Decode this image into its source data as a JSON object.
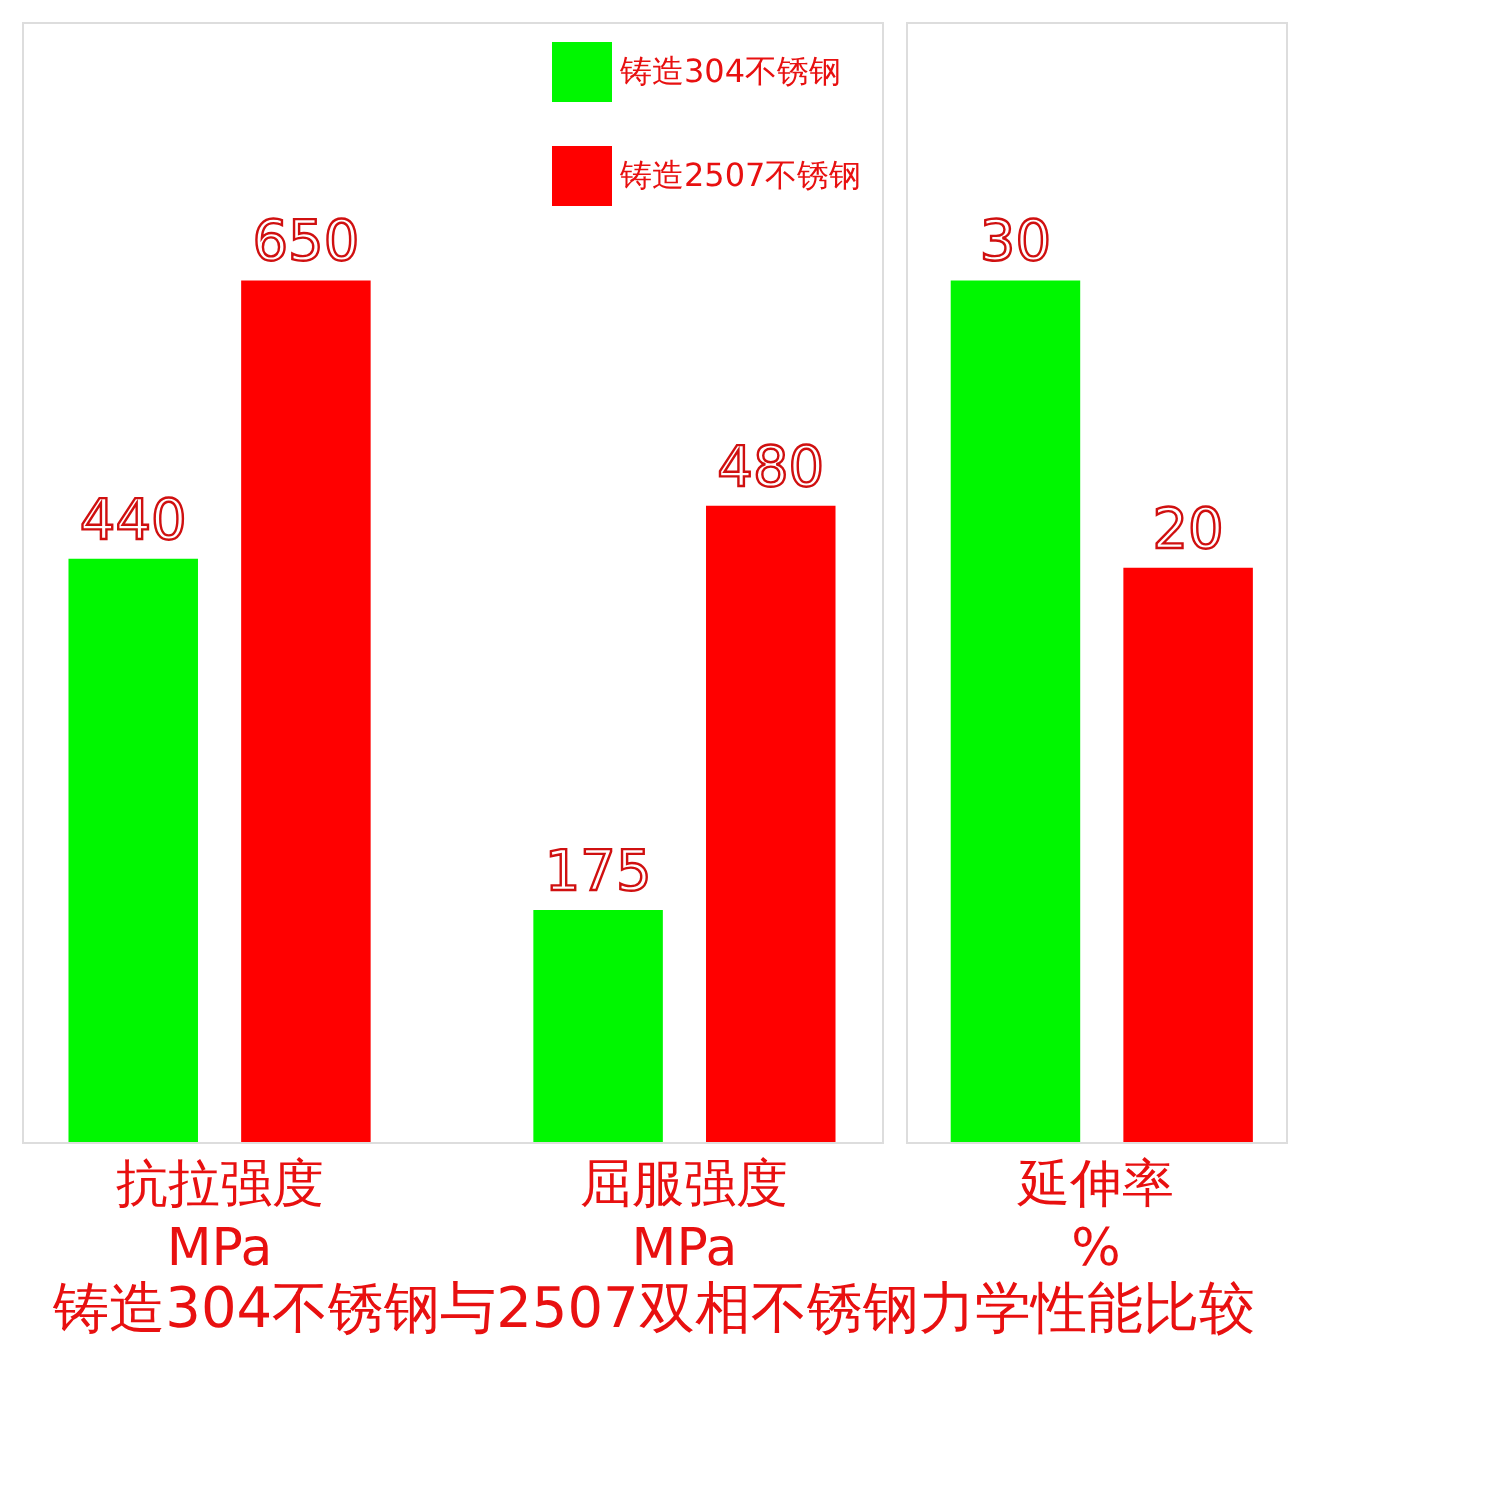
{
  "chart_data": [
    {
      "type": "bar",
      "title": "铸造304不锈钢与2507双相不锈钢力学性能比较",
      "categories": [
        "抗拉强度\nMPa",
        "屈服强度\nMPa"
      ],
      "data_labels": true,
      "legend": "top right",
      "grid": false,
      "tick_labels": "x",
      "series": [
        {
          "name": "铸造304不锈钢",
          "color": "#00f700",
          "values": [
            440,
            175
          ]
        },
        {
          "name": "铸造2507不锈钢",
          "color": "#ff0000",
          "values": [
            650,
            480
          ]
        }
      ]
    },
    {
      "type": "bar",
      "categories": [
        "延伸率\n%"
      ],
      "data_labels": true,
      "grid": false,
      "tick_labels": "x",
      "series": [
        {
          "color": "#00f700",
          "values": [
            30
          ]
        },
        {
          "color": "#ff0000",
          "values": [
            20
          ]
        }
      ]
    }
  ]
}
